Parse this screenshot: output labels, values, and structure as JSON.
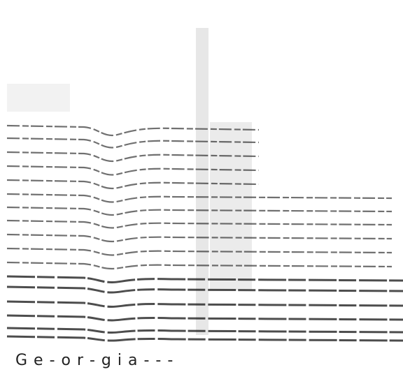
{
  "caption": "G e - o r - g i a - - -"
}
